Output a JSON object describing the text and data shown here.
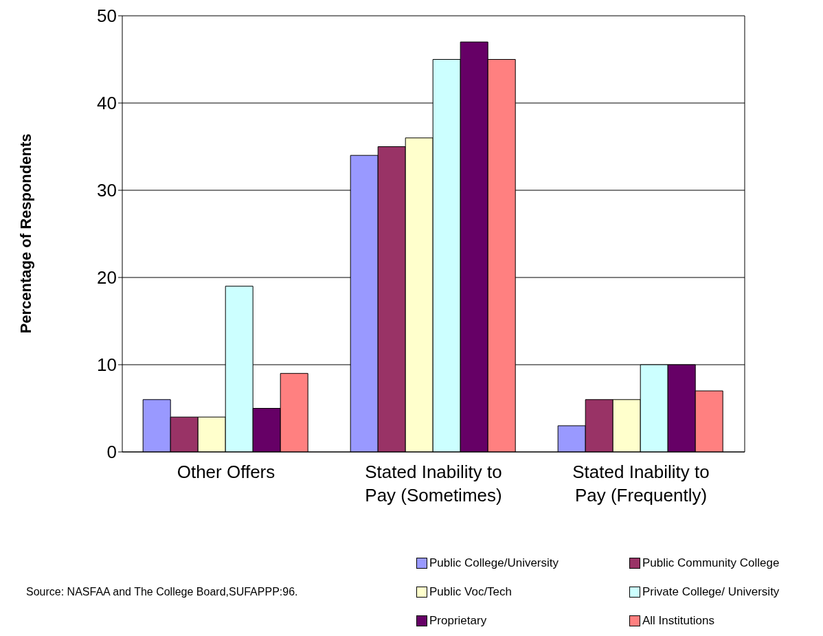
{
  "chart_data": {
    "type": "bar",
    "ylabel": "Percentage of Respondents",
    "categories": [
      "Other Offers",
      "Stated Inability to Pay (Sometimes)",
      "Stated Inability to Pay (Frequently)"
    ],
    "series": [
      {
        "name": "Public College/University",
        "color": "#9999ff",
        "values": [
          6,
          34,
          3
        ]
      },
      {
        "name": "Public Community College",
        "color": "#993366",
        "values": [
          4,
          35,
          6
        ]
      },
      {
        "name": "Public Voc/Tech",
        "color": "#ffffcc",
        "values": [
          4,
          36,
          6
        ]
      },
      {
        "name": "Private College/ University",
        "color": "#ccffff",
        "values": [
          19,
          45,
          10
        ]
      },
      {
        "name": "Proprietary",
        "color": "#660066",
        "values": [
          5,
          47,
          10
        ]
      },
      {
        "name": "All Institutions",
        "color": "#ff8080",
        "values": [
          9,
          45,
          7
        ]
      }
    ],
    "ylim": [
      0,
      50
    ],
    "yticks": [
      0,
      10,
      20,
      30,
      40,
      50
    ],
    "grid": "y",
    "legend": "bottom",
    "annotations": [
      "Source: NASFAA and The College Board,SUFAPPP:96."
    ]
  }
}
